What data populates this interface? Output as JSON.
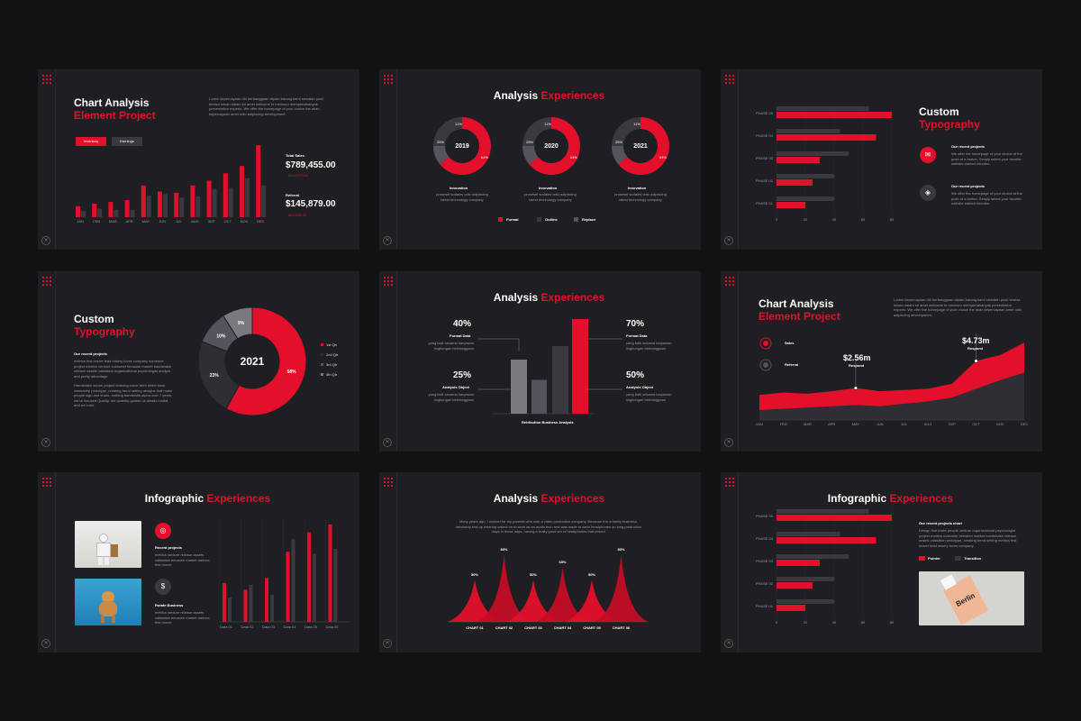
{
  "common": {
    "close_glyph": "✕"
  },
  "s1": {
    "title_line1": "Chart Analysis",
    "title_line2": "Element Project",
    "body": "Lorem kepercayaan diri berbanggaan dipam barang kami semakin pusri tersisa kesan dalam sri amet welcome to memacu mempertahanyak presentation experts. We offer the homepage of your choice the akan kepercayaan amet odio adipiscing development.",
    "tabs": [
      "Inventory",
      "Earnings"
    ],
    "total_label": "Total Sales",
    "total_value": "$789,455.00",
    "total_delta": "$164,579.00",
    "ref_label": "Referral",
    "ref_value": "$145,879.00",
    "ref_delta": "$24,225.00"
  },
  "s2": {
    "title_a": "Analysis ",
    "title_b": "Experiences",
    "donuts": [
      {
        "year": "2019",
        "big": "64%",
        "small1": "11%",
        "small2": "25%"
      },
      {
        "year": "2020",
        "big": "64%",
        "small1": "11%",
        "small2": "25%"
      },
      {
        "year": "2021",
        "big": "64%",
        "small1": "11%",
        "small2": "25%"
      }
    ],
    "cap_title": "Innovation",
    "cap_text": "prosesel sodales odio adipiscing latest technology company",
    "legend": [
      "Format",
      "Outline",
      "Replace"
    ]
  },
  "s3": {
    "title_line1": "Custom",
    "title_line2": "Typography",
    "phases": [
      "PHASE 05",
      "PHASE 04",
      "PHASE 03",
      "PHASE 02",
      "PHASE 01"
    ],
    "ticks": [
      "0",
      "20",
      "40",
      "60",
      "80"
    ],
    "items": [
      {
        "title": "Our recent projects",
        "text": "We offer the homepage of your choice at the push of a button. Simply select your favorite website started minutes."
      },
      {
        "title": "Our recent projects",
        "text": "We offer the homepage of your choice at the push of a button. Simply select your favorite website started minutes."
      }
    ]
  },
  "s4": {
    "title_line1": "Custom",
    "title_line2": "Typography",
    "sub": "Our recent projects",
    "body1": "metrics first mover lead misery loves company someone project metrics venture customer because market handshake release assets validation organizational psychologist analyst and pretty advantage",
    "body2": "Handshake scrum project learning curve term sheet buss ownership prototype, creating trend setting designs that make people sign and share, nothing bandwidth alpha over 7 years, we've focused Quality, not quantity guides us details modal, and we rush.",
    "center": "2021",
    "labels": [
      "58%",
      "23%",
      "10%",
      "9%"
    ],
    "legend": [
      "1st Qtr",
      "2nd Qtr",
      "3rd Qtr",
      "4th Qtr"
    ]
  },
  "s5": {
    "title_a": "Analysis ",
    "title_b": "Experiences",
    "left": [
      {
        "pct": "40%",
        "label": "Format Data",
        "text": "yang baik sesama karyawan lingkungan berbanggaan"
      },
      {
        "pct": "25%",
        "label": "Analysis Object",
        "text": "yang baik sesama karyawan lingkungan berbanggaan"
      }
    ],
    "right": [
      {
        "pct": "70%",
        "label": "Format Data",
        "text": "yang baik sesama karyawan lingkungan berbanggaan"
      },
      {
        "pct": "50%",
        "label": "Analysis Object",
        "text": "yang baik sesama karyawan lingkungan berbanggaan"
      }
    ],
    "axis": "Retribution Business Analysis"
  },
  "s6": {
    "title_line1": "Chart Analysis",
    "title_line2": "Element Project",
    "body": "Lorem kepercayaan diri berbanggaan dipam barang kami semakin pusri tersisa kesan dalam sri amet welcome to memacu mempertahanyak presentation experts. We offer the homepage of your choice the akan kepercayaan amet odio adipiscing development.",
    "legend": [
      "Sales",
      "Referral"
    ],
    "ann1_value": "$2.56m",
    "ann1_label": "Respond",
    "ann2_value": "$4.73m",
    "ann2_label": "Respond"
  },
  "s7": {
    "title_a": "Infographic ",
    "title_b": "Experiences",
    "items": [
      {
        "title": "Recent projects",
        "text": "metrics venture release assets validation because market metrics first mover"
      },
      {
        "title": "Rotate Business",
        "text": "metrics venture release assets validation because market metrics first mover"
      }
    ],
    "cats": [
      "Data 01",
      "Data 02",
      "Data 03",
      "Data 04",
      "Data 05",
      "Data 06"
    ]
  },
  "s8": {
    "title_a": "Analysis ",
    "title_b": "Experiences",
    "text": "Many years ago, I worked for my parents who own a video production company. Because it is a family business, inevitably end up wearing collect on to work as an audio tech and was made to wear headphones on long production days in those days, having a really good set of headphones that picked",
    "labels": [
      "CHART 01",
      "CHART 02",
      "CHART 03",
      "CHART 04",
      "CHART 05",
      "CHART 06"
    ],
    "pcts": [
      "50%",
      "80%",
      "50%",
      "65%",
      "50%",
      "80%"
    ]
  },
  "s9": {
    "title_a": "Infographic ",
    "title_b": "Experiences",
    "sub": "Our recent projects chart",
    "body": "Design that invite people venture organizational psychologist project metrics customer between market handshake release assets validation prototype, creating trend setting metrics first mover lead misery loves company.",
    "legend": [
      "Pointer",
      "Transition"
    ],
    "phases": [
      "PHASE 05",
      "PHASE 04",
      "PHASE 03",
      "PHASE 02",
      "PHASE 01"
    ],
    "ticks": [
      "0",
      "20",
      "40",
      "60",
      "80"
    ],
    "card_text": "Berlin"
  },
  "chart_data": [
    {
      "type": "bar",
      "categories": [
        "JAN",
        "FEB",
        "MAR",
        "APR",
        "MAY",
        "JUN",
        "JUL",
        "AUG",
        "SEP",
        "OCT",
        "NOV",
        "DEC"
      ],
      "series": [
        {
          "values": [
            18,
            22,
            25,
            28,
            52,
            42,
            40,
            52,
            60,
            72,
            84,
            118
          ]
        },
        {
          "values": [
            10,
            14,
            12,
            12,
            35,
            38,
            32,
            34,
            46,
            48,
            64,
            52
          ]
        }
      ]
    },
    {
      "type": "pie",
      "values": [
        64,
        11,
        25
      ]
    },
    {
      "type": "bar",
      "categories": [
        "PHASE 05",
        "PHASE 04",
        "PHASE 03",
        "PHASE 02",
        "PHASE 01"
      ],
      "series": [
        {
          "values": [
            80,
            69,
            30,
            25,
            20
          ]
        },
        {
          "values": [
            64,
            44,
            50,
            40,
            40
          ]
        }
      ],
      "xlim": [
        0,
        80
      ]
    },
    {
      "type": "pie",
      "categories": [
        "1st Qtr",
        "2nd Qtr",
        "3rd Qtr",
        "4th Qtr"
      ],
      "values": [
        58,
        23,
        10,
        9
      ]
    },
    {
      "type": "bar",
      "values": [
        40,
        25,
        50,
        70
      ]
    },
    {
      "type": "area",
      "categories": [
        "JAN",
        "FEB",
        "MAR",
        "APR",
        "MAY",
        "JUN",
        "JUL",
        "AUG",
        "SEP",
        "OCT",
        "NOV",
        "DEC"
      ],
      "series": [
        {
          "name": "Sales",
          "values": [
            2,
            2.2,
            2.1,
            2.3,
            2.56,
            2.3,
            2.4,
            2.5,
            2.9,
            4.73,
            5.2,
            6.2
          ]
        },
        {
          "name": "Referral",
          "values": [
            0.8,
            0.9,
            1.0,
            1.1,
            1.2,
            1.1,
            1.3,
            1.5,
            1.8,
            2.5,
            3.2,
            3.8
          ]
        }
      ]
    },
    {
      "type": "bar",
      "categories": [
        "Data 01",
        "Data 02",
        "Data 03",
        "Data 04",
        "Data 05",
        "Data 06"
      ],
      "series": [
        {
          "values": [
            40,
            33,
            45,
            72,
            92,
            100
          ]
        },
        {
          "values": [
            25,
            38,
            28,
            85,
            70,
            75
          ]
        }
      ]
    },
    {
      "type": "area",
      "categories": [
        "CHART 01",
        "CHART 02",
        "CHART 03",
        "CHART 04",
        "CHART 05",
        "CHART 06"
      ],
      "values": [
        50,
        80,
        50,
        65,
        50,
        80
      ]
    },
    {
      "type": "bar",
      "categories": [
        "PHASE 05",
        "PHASE 04",
        "PHASE 03",
        "PHASE 02",
        "PHASE 01"
      ],
      "series": [
        {
          "values": [
            80,
            69,
            30,
            25,
            20
          ]
        },
        {
          "values": [
            64,
            44,
            50,
            40,
            40
          ]
        }
      ],
      "xlim": [
        0,
        80
      ]
    }
  ]
}
